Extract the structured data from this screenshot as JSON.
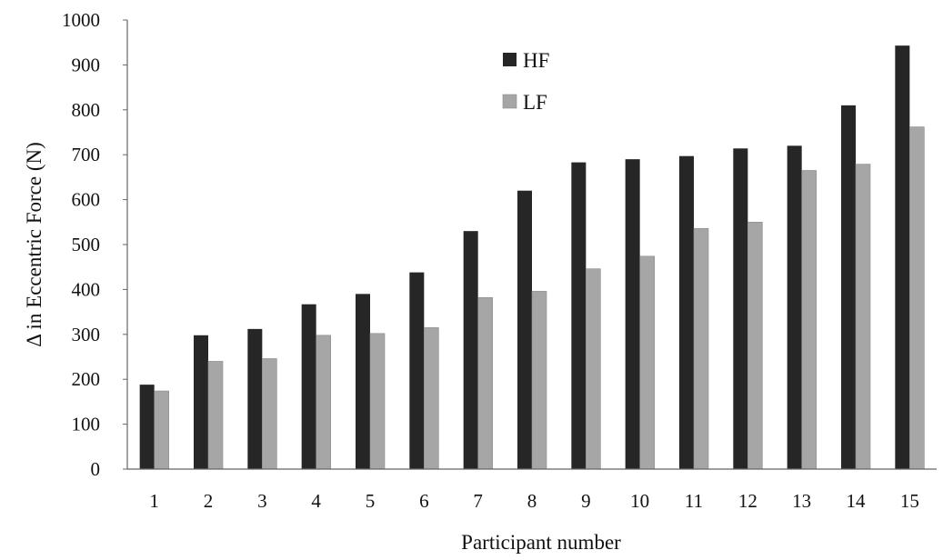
{
  "chart_data": {
    "type": "bar",
    "title": "",
    "xlabel": "Participant number",
    "ylabel": "Δ in Eccentric Force (N)",
    "categories": [
      "1",
      "2",
      "3",
      "4",
      "5",
      "6",
      "7",
      "8",
      "9",
      "10",
      "11",
      "12",
      "13",
      "14",
      "15"
    ],
    "series": [
      {
        "name": "HF",
        "color": "#262626",
        "values": [
          188,
          298,
          312,
          367,
          390,
          438,
          530,
          620,
          683,
          690,
          697,
          714,
          720,
          810,
          943
        ]
      },
      {
        "name": "LF",
        "color": "#a6a6a6",
        "values": [
          174,
          240,
          246,
          298,
          302,
          315,
          382,
          396,
          446,
          474,
          536,
          550,
          665,
          679,
          762
        ]
      }
    ],
    "ylim": [
      0,
      1000
    ],
    "yticks": [
      0,
      100,
      200,
      300,
      400,
      500,
      600,
      700,
      800,
      900,
      1000
    ],
    "grid": false,
    "legend_position": "top-center"
  }
}
